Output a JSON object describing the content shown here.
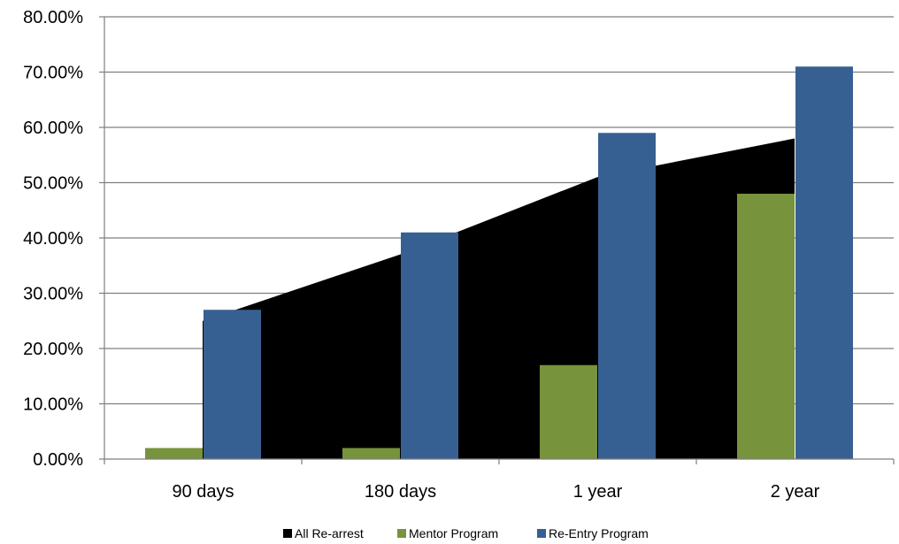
{
  "chart_data": {
    "type": "bar",
    "title": "",
    "xlabel": "",
    "ylabel": "",
    "categories": [
      "90 days",
      "180 days",
      "1 year",
      "2 year"
    ],
    "ylim": [
      0,
      80
    ],
    "yticks": [
      0,
      10,
      20,
      30,
      40,
      50,
      60,
      70,
      80
    ],
    "ytick_labels": [
      "0.00%",
      "10.00%",
      "20.00%",
      "30.00%",
      "40.00%",
      "50.00%",
      "60.00%",
      "70.00%",
      "80.00%"
    ],
    "grid": true,
    "legend_position": "bottom",
    "series": [
      {
        "name": "All Re-arrest",
        "kind": "area",
        "color": "#000000",
        "values": [
          25,
          37,
          51,
          58
        ]
      },
      {
        "name": "Mentor Program",
        "kind": "bar",
        "color": "#77933C",
        "values": [
          2,
          2,
          17,
          48
        ]
      },
      {
        "name": "Re-Entry Program",
        "kind": "bar",
        "color": "#376092",
        "values": [
          27,
          41,
          59,
          71
        ]
      }
    ]
  }
}
